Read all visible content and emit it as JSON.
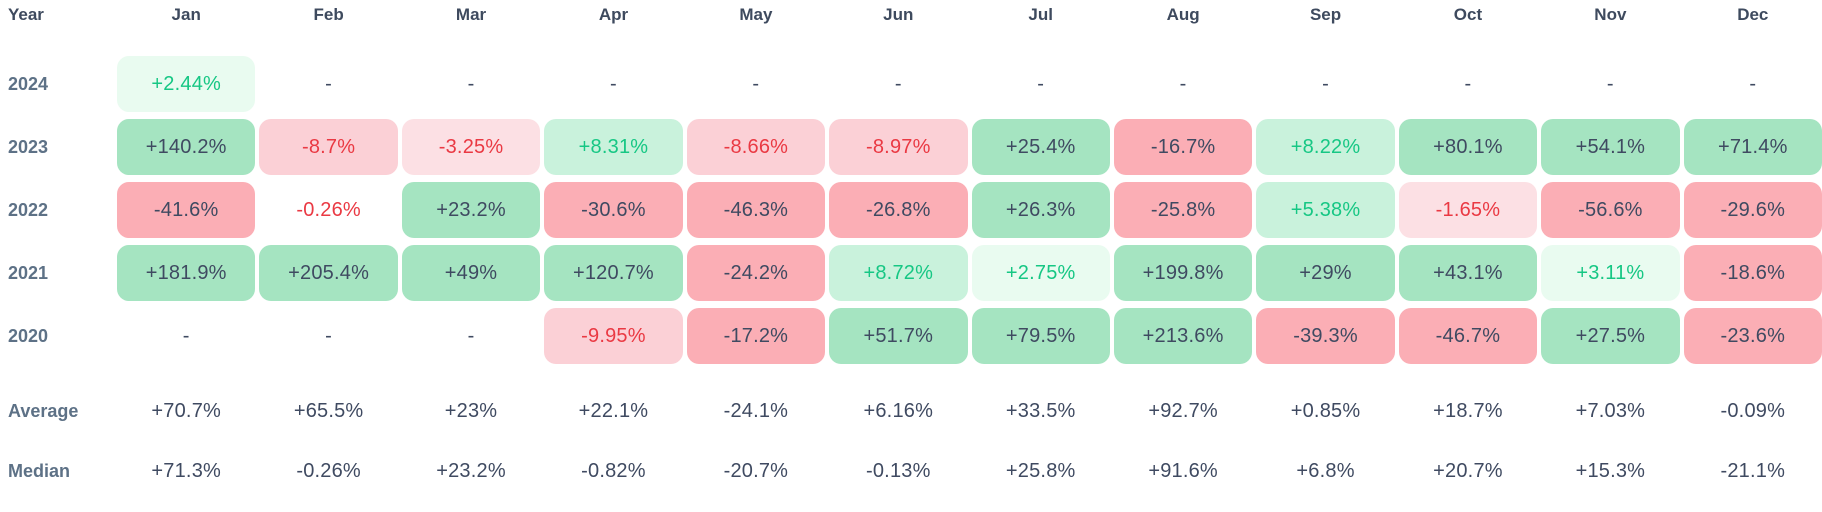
{
  "colors": {
    "strong_green_bg": "#a5e4c1",
    "light_green_bg": "#c9f2dc",
    "faint_green_bg": "#e9fbf0",
    "strong_red_bg": "#fbaeb5",
    "light_red_bg": "#fbd0d6",
    "faint_red_bg": "#fce0e4",
    "green_text": "#16c784",
    "red_text": "#ea3943",
    "dark_text": "#3f4a61",
    "label_text": "#5d7186",
    "header_text": "#3e4a5e"
  },
  "chart_data": {
    "type": "heatmap",
    "description": "Monthly percentage returns by year with Average and Median summary rows",
    "corner_label": "Year",
    "columns": [
      "Jan",
      "Feb",
      "Mar",
      "Apr",
      "May",
      "Jun",
      "Jul",
      "Aug",
      "Sep",
      "Oct",
      "Nov",
      "Dec"
    ],
    "rows": [
      {
        "label": "2024",
        "cells": [
          {
            "text": "+2.44%",
            "shade": "g1"
          },
          {
            "text": "-",
            "shade": "dash"
          },
          {
            "text": "-",
            "shade": "dash"
          },
          {
            "text": "-",
            "shade": "dash"
          },
          {
            "text": "-",
            "shade": "dash"
          },
          {
            "text": "-",
            "shade": "dash"
          },
          {
            "text": "-",
            "shade": "dash"
          },
          {
            "text": "-",
            "shade": "dash"
          },
          {
            "text": "-",
            "shade": "dash"
          },
          {
            "text": "-",
            "shade": "dash"
          },
          {
            "text": "-",
            "shade": "dash"
          },
          {
            "text": "-",
            "shade": "dash"
          }
        ]
      },
      {
        "label": "2023",
        "cells": [
          {
            "text": "+140.2%",
            "shade": "g3"
          },
          {
            "text": "-8.7%",
            "shade": "r2"
          },
          {
            "text": "-3.25%",
            "shade": "r1"
          },
          {
            "text": "+8.31%",
            "shade": "g2"
          },
          {
            "text": "-8.66%",
            "shade": "r2"
          },
          {
            "text": "-8.97%",
            "shade": "r2"
          },
          {
            "text": "+25.4%",
            "shade": "g3"
          },
          {
            "text": "-16.7%",
            "shade": "r3"
          },
          {
            "text": "+8.22%",
            "shade": "g2"
          },
          {
            "text": "+80.1%",
            "shade": "g3"
          },
          {
            "text": "+54.1%",
            "shade": "g3"
          },
          {
            "text": "+71.4%",
            "shade": "g3"
          }
        ]
      },
      {
        "label": "2022",
        "cells": [
          {
            "text": "-41.6%",
            "shade": "r3"
          },
          {
            "text": "-0.26%",
            "shade": "r0"
          },
          {
            "text": "+23.2%",
            "shade": "g3"
          },
          {
            "text": "-30.6%",
            "shade": "r3"
          },
          {
            "text": "-46.3%",
            "shade": "r3"
          },
          {
            "text": "-26.8%",
            "shade": "r3"
          },
          {
            "text": "+26.3%",
            "shade": "g3"
          },
          {
            "text": "-25.8%",
            "shade": "r3"
          },
          {
            "text": "+5.38%",
            "shade": "g2"
          },
          {
            "text": "-1.65%",
            "shade": "r1"
          },
          {
            "text": "-56.6%",
            "shade": "r3"
          },
          {
            "text": "-29.6%",
            "shade": "r3"
          }
        ]
      },
      {
        "label": "2021",
        "cells": [
          {
            "text": "+181.9%",
            "shade": "g3"
          },
          {
            "text": "+205.4%",
            "shade": "g3"
          },
          {
            "text": "+49%",
            "shade": "g3"
          },
          {
            "text": "+120.7%",
            "shade": "g3"
          },
          {
            "text": "-24.2%",
            "shade": "r3"
          },
          {
            "text": "+8.72%",
            "shade": "g2"
          },
          {
            "text": "+2.75%",
            "shade": "g1"
          },
          {
            "text": "+199.8%",
            "shade": "g3"
          },
          {
            "text": "+29%",
            "shade": "g3"
          },
          {
            "text": "+43.1%",
            "shade": "g3"
          },
          {
            "text": "+3.11%",
            "shade": "g1"
          },
          {
            "text": "-18.6%",
            "shade": "r3"
          }
        ]
      },
      {
        "label": "2020",
        "cells": [
          {
            "text": "-",
            "shade": "dash"
          },
          {
            "text": "-",
            "shade": "dash"
          },
          {
            "text": "-",
            "shade": "dash"
          },
          {
            "text": "-9.95%",
            "shade": "r2"
          },
          {
            "text": "-17.2%",
            "shade": "r3"
          },
          {
            "text": "+51.7%",
            "shade": "g3"
          },
          {
            "text": "+79.5%",
            "shade": "g3"
          },
          {
            "text": "+213.6%",
            "shade": "g3"
          },
          {
            "text": "-39.3%",
            "shade": "r3"
          },
          {
            "text": "-46.7%",
            "shade": "r3"
          },
          {
            "text": "+27.5%",
            "shade": "g3"
          },
          {
            "text": "-23.6%",
            "shade": "r3"
          }
        ]
      }
    ],
    "summary_rows": [
      {
        "label": "Average",
        "cells": [
          {
            "text": "+70.7%",
            "shade": "plain"
          },
          {
            "text": "+65.5%",
            "shade": "plain"
          },
          {
            "text": "+23%",
            "shade": "plain"
          },
          {
            "text": "+22.1%",
            "shade": "plain"
          },
          {
            "text": "-24.1%",
            "shade": "plain"
          },
          {
            "text": "+6.16%",
            "shade": "plain"
          },
          {
            "text": "+33.5%",
            "shade": "plain"
          },
          {
            "text": "+92.7%",
            "shade": "plain"
          },
          {
            "text": "+0.85%",
            "shade": "plain"
          },
          {
            "text": "+18.7%",
            "shade": "plain"
          },
          {
            "text": "+7.03%",
            "shade": "plain"
          },
          {
            "text": "-0.09%",
            "shade": "plain"
          }
        ]
      },
      {
        "label": "Median",
        "cells": [
          {
            "text": "+71.3%",
            "shade": "plain"
          },
          {
            "text": "-0.26%",
            "shade": "plain"
          },
          {
            "text": "+23.2%",
            "shade": "plain"
          },
          {
            "text": "-0.82%",
            "shade": "plain"
          },
          {
            "text": "-20.7%",
            "shade": "plain"
          },
          {
            "text": "-0.13%",
            "shade": "plain"
          },
          {
            "text": "+25.8%",
            "shade": "plain"
          },
          {
            "text": "+91.6%",
            "shade": "plain"
          },
          {
            "text": "+6.8%",
            "shade": "plain"
          },
          {
            "text": "+20.7%",
            "shade": "plain"
          },
          {
            "text": "+15.3%",
            "shade": "plain"
          },
          {
            "text": "-21.1%",
            "shade": "plain"
          }
        ]
      }
    ]
  }
}
